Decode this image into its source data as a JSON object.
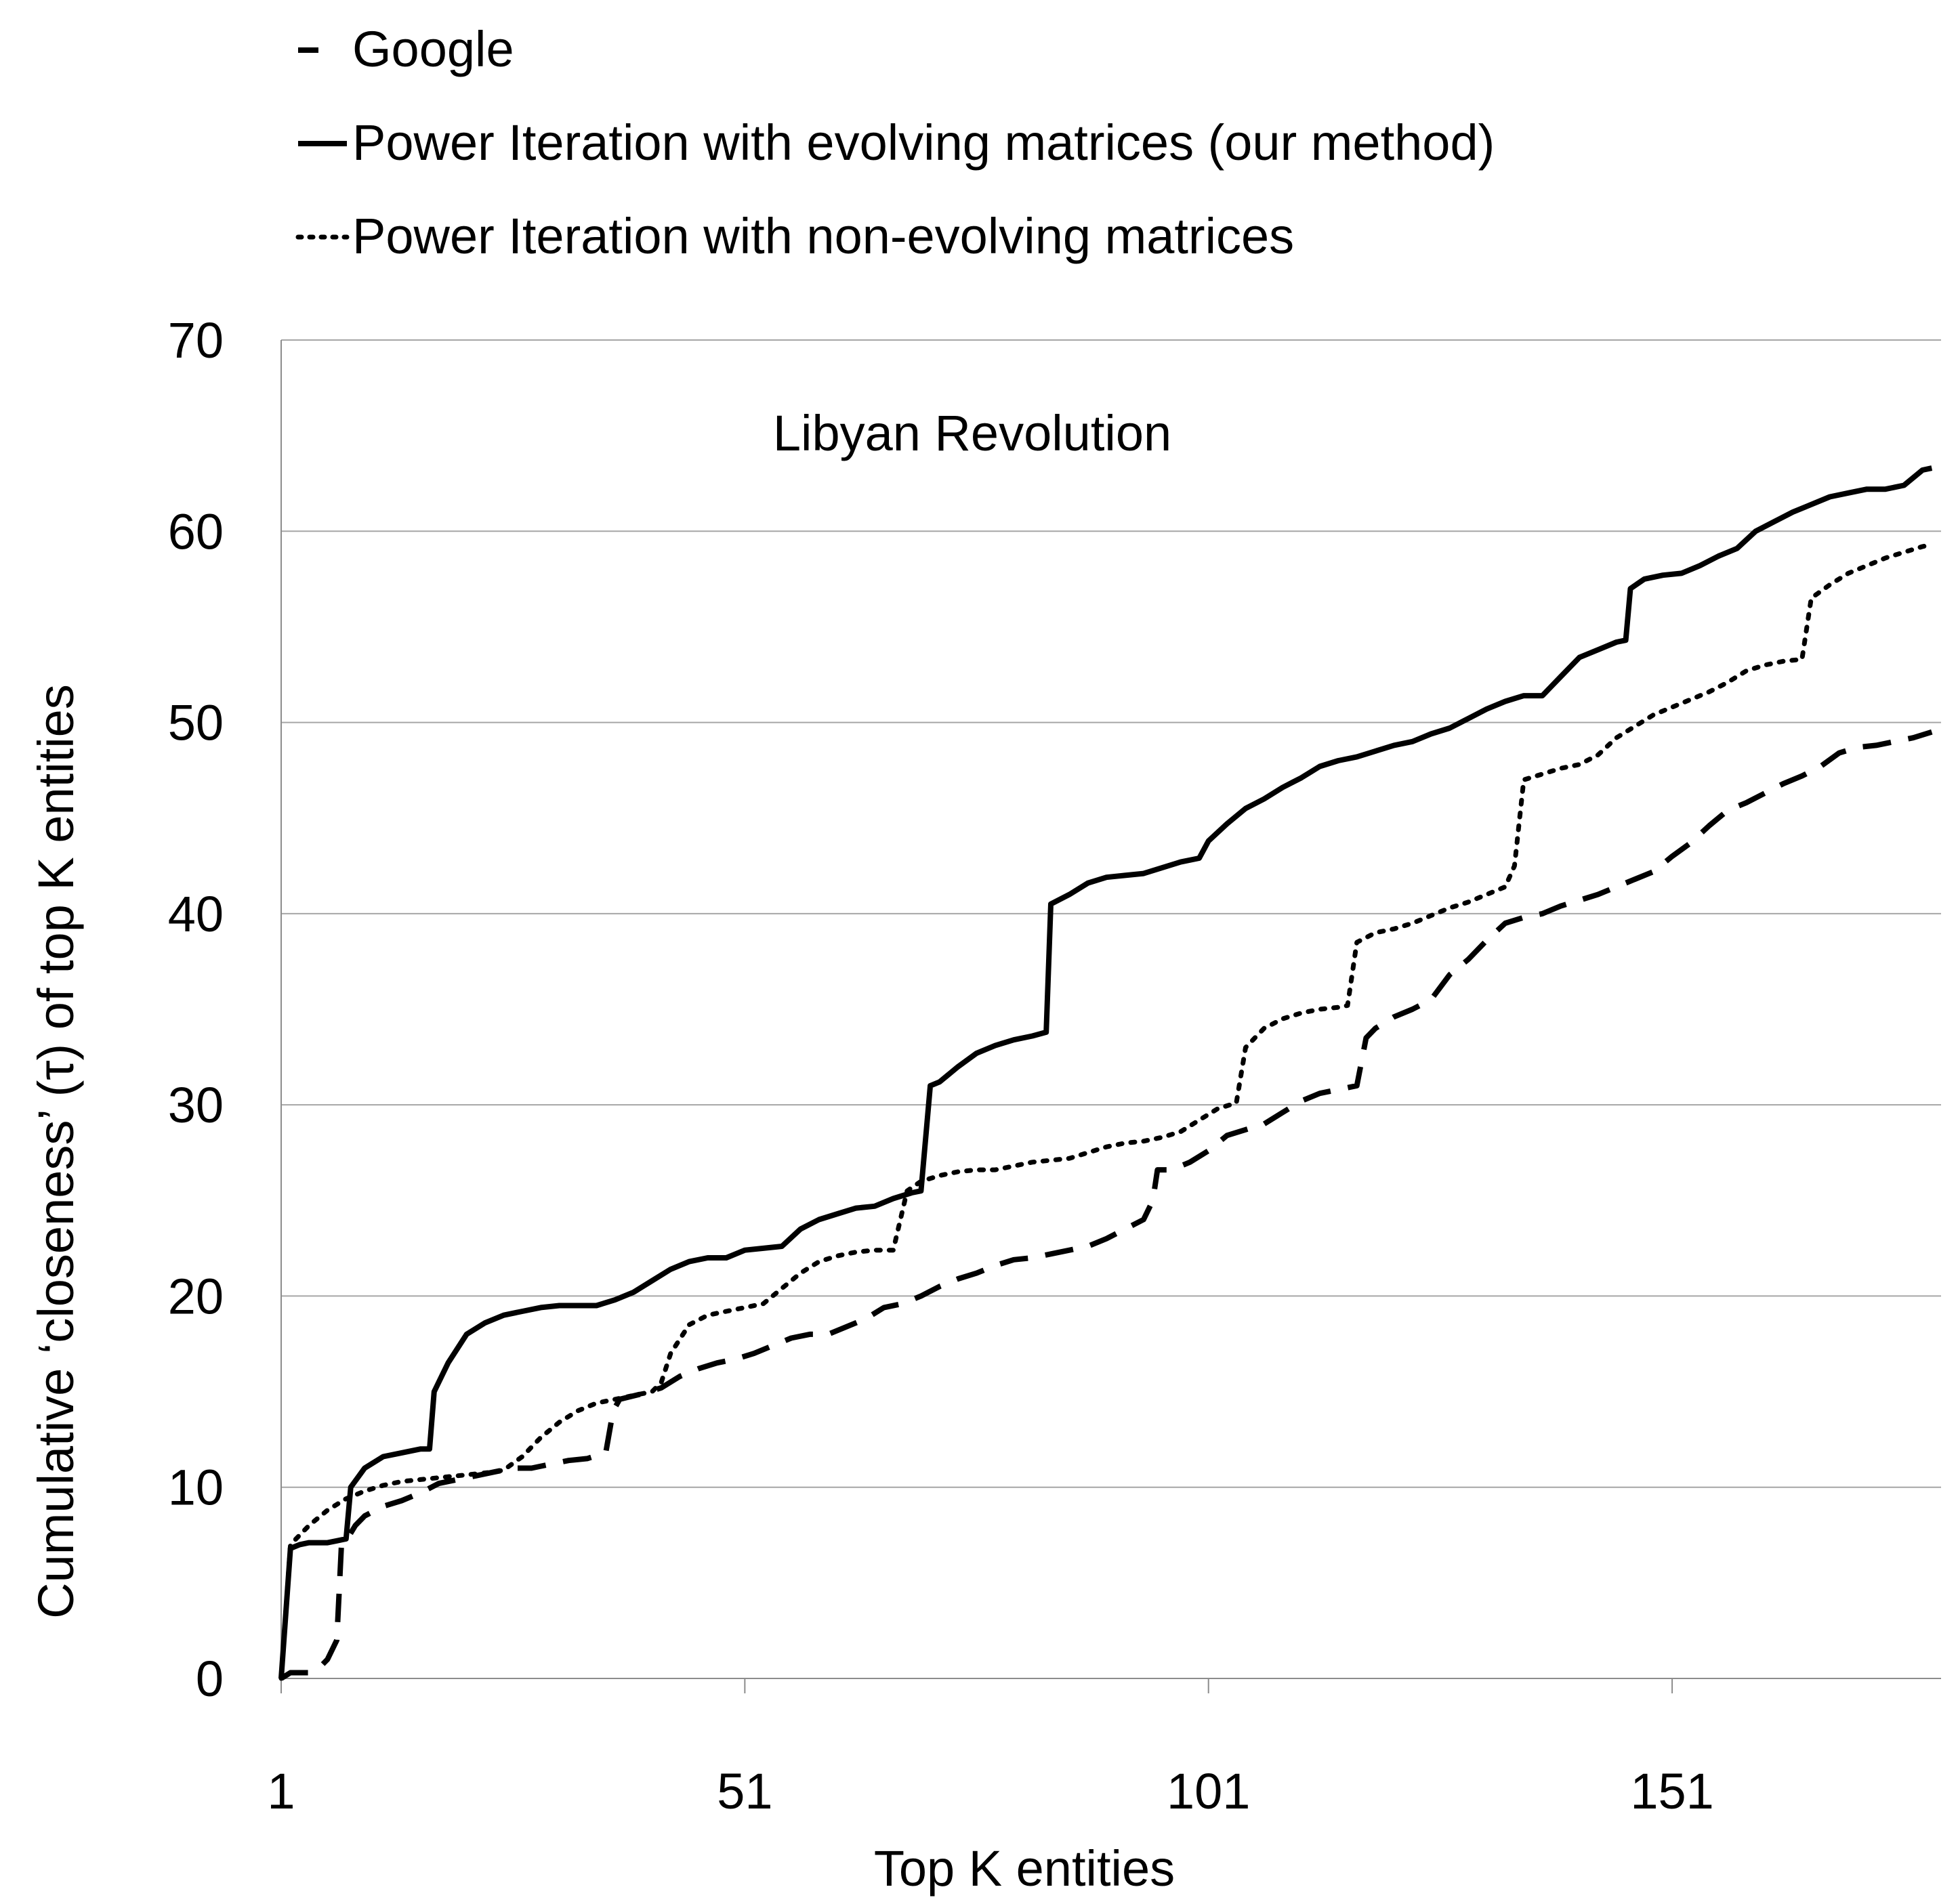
{
  "chart_data": {
    "type": "line",
    "annotation": "Libyan Revolution",
    "xlabel": "Top K entities",
    "ylabel": "Cumulative ‘closeness’ (τ) of top K entities",
    "xlim": [
      1,
      180
    ],
    "ylim": [
      0,
      70
    ],
    "x_ticks": [
      "1",
      "51",
      "101",
      "151"
    ],
    "y_ticks": [
      "0",
      "10",
      "20",
      "30",
      "40",
      "50",
      "60",
      "70"
    ],
    "grid": "horizontal",
    "legend_position": "top",
    "series": [
      {
        "name": "Google",
        "style": "dashed",
        "color": "#000000",
        "points": [
          [
            1,
            0
          ],
          [
            2,
            0.3
          ],
          [
            3,
            0.3
          ],
          [
            4,
            0.3
          ],
          [
            5,
            0.5
          ],
          [
            6,
            1
          ],
          [
            7,
            2
          ],
          [
            7.5,
            7
          ],
          [
            8,
            7.2
          ],
          [
            9,
            8
          ],
          [
            10,
            8.5
          ],
          [
            12,
            9
          ],
          [
            14,
            9.3
          ],
          [
            16,
            9.7
          ],
          [
            18,
            10.2
          ],
          [
            20,
            10.4
          ],
          [
            22,
            10.6
          ],
          [
            24,
            10.8
          ],
          [
            26,
            11
          ],
          [
            28,
            11
          ],
          [
            30,
            11.2
          ],
          [
            32,
            11.4
          ],
          [
            34,
            11.5
          ],
          [
            36,
            11.8
          ],
          [
            36.8,
            14
          ],
          [
            37.5,
            14.6
          ],
          [
            40,
            14.9
          ],
          [
            42,
            15.2
          ],
          [
            44,
            15.8
          ],
          [
            46,
            16.2
          ],
          [
            48,
            16.5
          ],
          [
            50,
            16.7
          ],
          [
            52,
            17
          ],
          [
            54,
            17.4
          ],
          [
            56,
            17.8
          ],
          [
            58,
            18
          ],
          [
            60,
            18
          ],
          [
            62,
            18.4
          ],
          [
            64,
            18.8
          ],
          [
            66,
            19.4
          ],
          [
            68,
            19.6
          ],
          [
            70,
            20
          ],
          [
            72,
            20.5
          ],
          [
            74,
            20.9
          ],
          [
            76,
            21.2
          ],
          [
            78,
            21.6
          ],
          [
            80,
            21.9
          ],
          [
            82,
            22
          ],
          [
            84,
            22.2
          ],
          [
            86,
            22.4
          ],
          [
            88,
            22.6
          ],
          [
            90,
            23
          ],
          [
            92,
            23.5
          ],
          [
            94,
            24
          ],
          [
            95,
            25
          ],
          [
            95.5,
            26.6
          ],
          [
            97,
            26.6
          ],
          [
            99,
            27
          ],
          [
            101,
            27.6
          ],
          [
            103,
            28.4
          ],
          [
            105,
            28.7
          ],
          [
            107,
            29
          ],
          [
            109,
            29.6
          ],
          [
            111,
            30.2
          ],
          [
            113,
            30.6
          ],
          [
            115,
            30.8
          ],
          [
            117,
            31
          ],
          [
            118,
            33.5
          ],
          [
            119,
            34
          ],
          [
            121,
            34.6
          ],
          [
            123,
            35
          ],
          [
            125,
            35.5
          ],
          [
            127,
            36.8
          ],
          [
            129,
            37.6
          ],
          [
            131,
            38.6
          ],
          [
            133,
            39.5
          ],
          [
            135,
            39.8
          ],
          [
            137,
            40
          ],
          [
            139,
            40.4
          ],
          [
            141,
            40.7
          ],
          [
            143,
            41
          ],
          [
            145,
            41.4
          ],
          [
            147,
            41.8
          ],
          [
            149,
            42.2
          ],
          [
            151,
            43
          ],
          [
            153,
            43.7
          ],
          [
            155,
            44.6
          ],
          [
            157,
            45.4
          ],
          [
            159,
            45.8
          ],
          [
            161,
            46.3
          ],
          [
            163,
            46.8
          ],
          [
            165,
            47.2
          ],
          [
            167,
            47.7
          ],
          [
            169,
            48.4
          ],
          [
            171,
            48.7
          ],
          [
            173,
            48.8
          ],
          [
            175,
            49
          ],
          [
            177,
            49.2
          ],
          [
            179,
            49.5
          ]
        ]
      },
      {
        "name": "Power Iteration with evolving matrices (our method)",
        "style": "solid",
        "color": "#000000",
        "points": [
          [
            1,
            0
          ],
          [
            2,
            6.8
          ],
          [
            3,
            7
          ],
          [
            4,
            7.1
          ],
          [
            5,
            7.1
          ],
          [
            6,
            7.1
          ],
          [
            7,
            7.2
          ],
          [
            8,
            7.3
          ],
          [
            8.5,
            10
          ],
          [
            10,
            11
          ],
          [
            12,
            11.6
          ],
          [
            14,
            11.8
          ],
          [
            16,
            12
          ],
          [
            17,
            12
          ],
          [
            17.5,
            15
          ],
          [
            19,
            16.5
          ],
          [
            21,
            18
          ],
          [
            23,
            18.6
          ],
          [
            25,
            19
          ],
          [
            27,
            19.2
          ],
          [
            29,
            19.4
          ],
          [
            31,
            19.5
          ],
          [
            33,
            19.5
          ],
          [
            35,
            19.5
          ],
          [
            37,
            19.8
          ],
          [
            39,
            20.2
          ],
          [
            41,
            20.8
          ],
          [
            43,
            21.4
          ],
          [
            45,
            21.8
          ],
          [
            47,
            22
          ],
          [
            49,
            22
          ],
          [
            51,
            22.4
          ],
          [
            53,
            22.5
          ],
          [
            55,
            22.6
          ],
          [
            57,
            23.5
          ],
          [
            59,
            24
          ],
          [
            61,
            24.3
          ],
          [
            63,
            24.6
          ],
          [
            65,
            24.7
          ],
          [
            67,
            25.1
          ],
          [
            69,
            25.4
          ],
          [
            70,
            25.5
          ],
          [
            71,
            31
          ],
          [
            72,
            31.2
          ],
          [
            74,
            32
          ],
          [
            76,
            32.7
          ],
          [
            78,
            33.1
          ],
          [
            80,
            33.4
          ],
          [
            82,
            33.6
          ],
          [
            83.5,
            33.8
          ],
          [
            84,
            40.5
          ],
          [
            86,
            41
          ],
          [
            88,
            41.6
          ],
          [
            90,
            41.9
          ],
          [
            92,
            42
          ],
          [
            94,
            42.1
          ],
          [
            96,
            42.4
          ],
          [
            98,
            42.7
          ],
          [
            100,
            42.9
          ],
          [
            101,
            43.8
          ],
          [
            103,
            44.7
          ],
          [
            105,
            45.5
          ],
          [
            107,
            46
          ],
          [
            109,
            46.6
          ],
          [
            111,
            47.1
          ],
          [
            113,
            47.7
          ],
          [
            115,
            48
          ],
          [
            117,
            48.2
          ],
          [
            119,
            48.5
          ],
          [
            121,
            48.8
          ],
          [
            123,
            49
          ],
          [
            125,
            49.4
          ],
          [
            127,
            49.7
          ],
          [
            129,
            50.2
          ],
          [
            131,
            50.7
          ],
          [
            133,
            51.1
          ],
          [
            135,
            51.4
          ],
          [
            137,
            51.4
          ],
          [
            139,
            52.4
          ],
          [
            141,
            53.4
          ],
          [
            143,
            53.8
          ],
          [
            145,
            54.2
          ],
          [
            146,
            54.3
          ],
          [
            146.5,
            57
          ],
          [
            148,
            57.5
          ],
          [
            150,
            57.7
          ],
          [
            152,
            57.8
          ],
          [
            154,
            58.2
          ],
          [
            156,
            58.7
          ],
          [
            158,
            59.1
          ],
          [
            160,
            60
          ],
          [
            162,
            60.5
          ],
          [
            164,
            61
          ],
          [
            166,
            61.4
          ],
          [
            168,
            61.8
          ],
          [
            170,
            62
          ],
          [
            172,
            62.2
          ],
          [
            174,
            62.2
          ],
          [
            176,
            62.4
          ],
          [
            178,
            63.2
          ],
          [
            179,
            63.3
          ]
        ]
      },
      {
        "name": "Power Iteration with non-evolving matrices",
        "style": "dotted",
        "color": "#000000",
        "points": [
          [
            1,
            0
          ],
          [
            2,
            7
          ],
          [
            4,
            8
          ],
          [
            6,
            8.8
          ],
          [
            8,
            9.4
          ],
          [
            10,
            9.8
          ],
          [
            12,
            10.1
          ],
          [
            14,
            10.3
          ],
          [
            16,
            10.4
          ],
          [
            18,
            10.5
          ],
          [
            20,
            10.6
          ],
          [
            22,
            10.7
          ],
          [
            24,
            10.8
          ],
          [
            25,
            10.9
          ],
          [
            27,
            11.6
          ],
          [
            29,
            12.6
          ],
          [
            31,
            13.4
          ],
          [
            33,
            14
          ],
          [
            35,
            14.4
          ],
          [
            37,
            14.6
          ],
          [
            39,
            14.8
          ],
          [
            41,
            15
          ],
          [
            42,
            15.5
          ],
          [
            43,
            17
          ],
          [
            45,
            18.5
          ],
          [
            47,
            19
          ],
          [
            49,
            19.2
          ],
          [
            51,
            19.4
          ],
          [
            53,
            19.6
          ],
          [
            55,
            20.4
          ],
          [
            57,
            21.2
          ],
          [
            59,
            21.8
          ],
          [
            61,
            22.1
          ],
          [
            63,
            22.3
          ],
          [
            65,
            22.4
          ],
          [
            67,
            22.4
          ],
          [
            68.5,
            25.5
          ],
          [
            70,
            26
          ],
          [
            72,
            26.3
          ],
          [
            74,
            26.5
          ],
          [
            76,
            26.6
          ],
          [
            78,
            26.6
          ],
          [
            80,
            26.8
          ],
          [
            82,
            27
          ],
          [
            84,
            27.1
          ],
          [
            86,
            27.2
          ],
          [
            88,
            27.5
          ],
          [
            90,
            27.8
          ],
          [
            92,
            28
          ],
          [
            94,
            28.1
          ],
          [
            96,
            28.3
          ],
          [
            98,
            28.6
          ],
          [
            100,
            29.2
          ],
          [
            102,
            29.8
          ],
          [
            104,
            30.1
          ],
          [
            105,
            33
          ],
          [
            107,
            34
          ],
          [
            109,
            34.5
          ],
          [
            111,
            34.8
          ],
          [
            113,
            35
          ],
          [
            115,
            35.1
          ],
          [
            116,
            35.2
          ],
          [
            117,
            38.5
          ],
          [
            119,
            39
          ],
          [
            121,
            39.2
          ],
          [
            123,
            39.5
          ],
          [
            125,
            39.9
          ],
          [
            127,
            40.3
          ],
          [
            129,
            40.6
          ],
          [
            131,
            41
          ],
          [
            133,
            41.4
          ],
          [
            134,
            42.5
          ],
          [
            135,
            47
          ],
          [
            137,
            47.3
          ],
          [
            139,
            47.6
          ],
          [
            141,
            47.8
          ],
          [
            143,
            48.3
          ],
          [
            145,
            49.2
          ],
          [
            147,
            49.8
          ],
          [
            149,
            50.4
          ],
          [
            151,
            50.8
          ],
          [
            153,
            51.2
          ],
          [
            155,
            51.6
          ],
          [
            157,
            52.1
          ],
          [
            159,
            52.7
          ],
          [
            161,
            53
          ],
          [
            163,
            53.2
          ],
          [
            165,
            53.3
          ],
          [
            166,
            56.5
          ],
          [
            168,
            57.2
          ],
          [
            170,
            57.8
          ],
          [
            172,
            58.2
          ],
          [
            174,
            58.6
          ],
          [
            176,
            58.9
          ],
          [
            178,
            59.2
          ],
          [
            179,
            59.3
          ]
        ]
      }
    ]
  }
}
